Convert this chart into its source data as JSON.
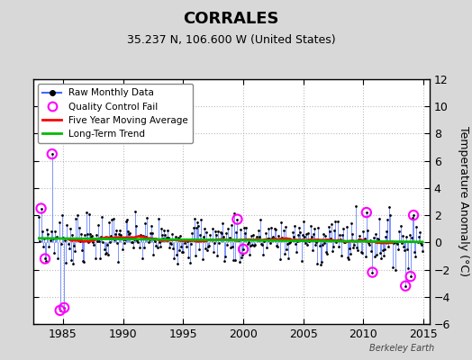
{
  "title": "CORRALES",
  "subtitle": "35.237 N, 106.600 W (United States)",
  "ylabel": "Temperature Anomaly (°C)",
  "xlim": [
    1982.5,
    2015.5
  ],
  "ylim": [
    -6,
    12
  ],
  "yticks": [
    -6,
    -4,
    -2,
    0,
    2,
    4,
    6,
    8,
    10,
    12
  ],
  "xticks": [
    1985,
    1990,
    1995,
    2000,
    2005,
    2010,
    2015
  ],
  "fig_bg_color": "#d8d8d8",
  "plot_bg_color": "#ffffff",
  "watermark": "Berkeley Earth",
  "raw_line_color": "#4466ff",
  "raw_dot_color": "#000000",
  "moving_avg_color": "#ff0000",
  "trend_color": "#00bb00",
  "qc_fail_color": "#ff00ff",
  "grid_color": "#bbbbbb"
}
